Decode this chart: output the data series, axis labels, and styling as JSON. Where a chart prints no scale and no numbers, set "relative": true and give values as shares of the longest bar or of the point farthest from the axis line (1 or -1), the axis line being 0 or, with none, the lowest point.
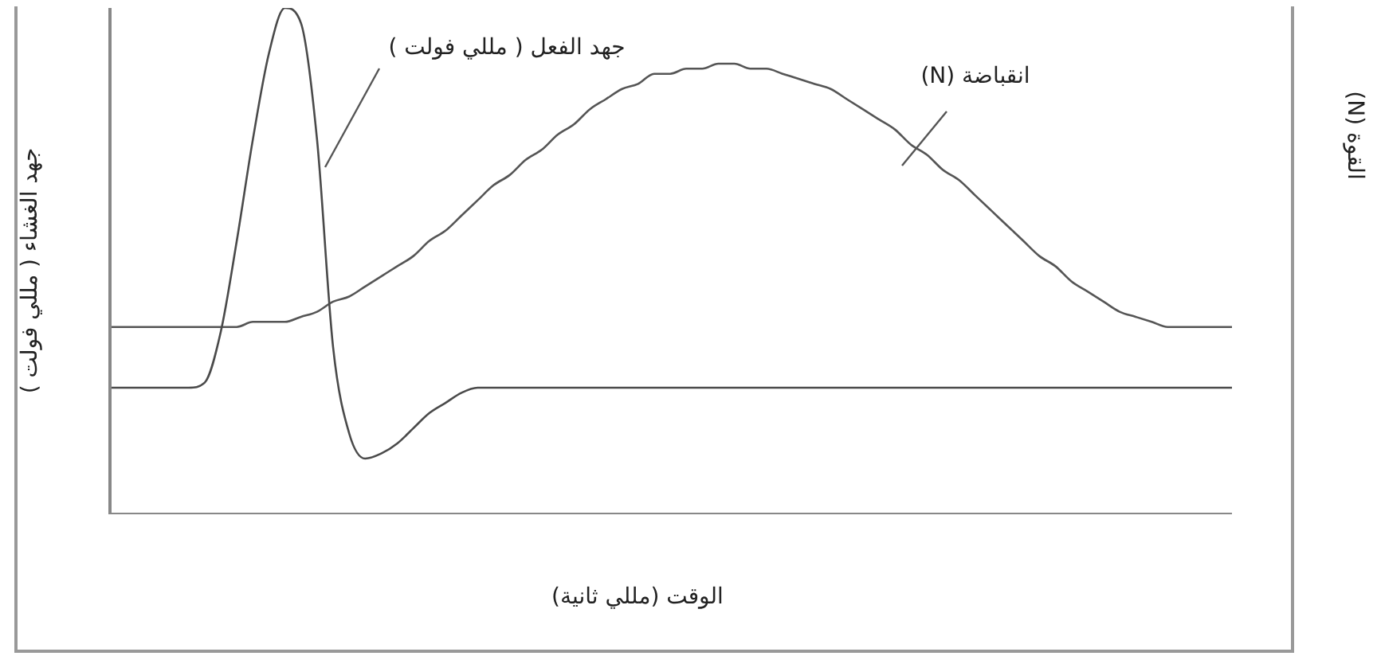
{
  "chart_data": {
    "type": "line",
    "relative": true,
    "ylabel": "جهد الغشاء ( مللي فولت )",
    "y2label": "القوة (N)",
    "xlabel": "الوقت (مللي ثانية)",
    "annotations": [
      "جهد الفعل ( مللي فولت )",
      "انقباضة (N)"
    ],
    "legend": false,
    "grid": false,
    "marker": "none",
    "line_style": "solid",
    "categories": [
      null,
      null,
      null,
      null,
      null,
      null,
      null,
      null,
      null,
      null,
      null,
      null,
      null,
      null,
      null,
      null,
      null,
      null,
      null,
      null,
      null,
      null,
      null,
      null,
      null,
      null,
      null,
      null,
      null,
      null,
      null,
      null,
      null,
      null,
      null,
      null,
      null,
      null,
      null,
      null,
      null,
      null,
      null,
      null,
      null,
      null,
      null,
      null,
      null,
      null,
      null,
      null,
      null,
      null,
      null,
      null,
      null,
      null,
      null,
      null,
      null,
      null,
      null,
      null,
      null,
      null,
      null,
      null,
      null,
      null,
      null
    ],
    "series": [
      {
        "color": "#4a4a4a",
        "values": [
          0.25,
          0.25,
          0.25,
          0.25,
          0.25,
          0.25,
          0.26,
          0.36,
          0.54,
          0.74,
          0.91,
          1,
          0.97,
          0.74,
          0.33,
          0.16,
          0.11,
          0.12,
          0.14,
          0.17,
          0.2,
          0.22,
          0.24,
          0.25,
          0.25,
          0.25,
          0.25,
          0.25,
          0.25,
          0.25,
          0.25,
          0.25,
          0.25,
          0.25,
          0.25,
          0.25,
          0.25,
          0.25,
          0.25,
          0.25,
          0.25,
          0.25,
          0.25,
          0.25,
          0.25,
          0.25,
          0.25,
          0.25,
          0.25,
          0.25,
          0.25,
          0.25,
          0.25,
          0.25,
          0.25,
          0.25,
          0.25,
          0.25,
          0.25,
          0.25,
          0.25,
          0.25,
          0.25,
          0.25,
          0.25,
          0.25,
          0.25,
          0.25,
          0.25,
          0.25,
          0.25
        ]
      },
      {
        "color": "#555555",
        "values": [
          0.37,
          0.37,
          0.37,
          0.37,
          0.37,
          0.37,
          0.37,
          0.37,
          0.37,
          0.38,
          0.38,
          0.38,
          0.39,
          0.4,
          0.42,
          0.43,
          0.45,
          0.47,
          0.49,
          0.51,
          0.54,
          0.56,
          0.59,
          0.62,
          0.65,
          0.67,
          0.7,
          0.72,
          0.75,
          0.77,
          0.8,
          0.82,
          0.84,
          0.85,
          0.87,
          0.87,
          0.88,
          0.88,
          0.89,
          0.89,
          0.88,
          0.88,
          0.87,
          0.86,
          0.85,
          0.84,
          0.82,
          0.8,
          0.78,
          0.76,
          0.73,
          0.71,
          0.68,
          0.66,
          0.63,
          0.6,
          0.57,
          0.54,
          0.51,
          0.49,
          0.46,
          0.44,
          0.42,
          0.4,
          0.39,
          0.38,
          0.37,
          0.37,
          0.37,
          0.37,
          0.37
        ]
      }
    ]
  }
}
